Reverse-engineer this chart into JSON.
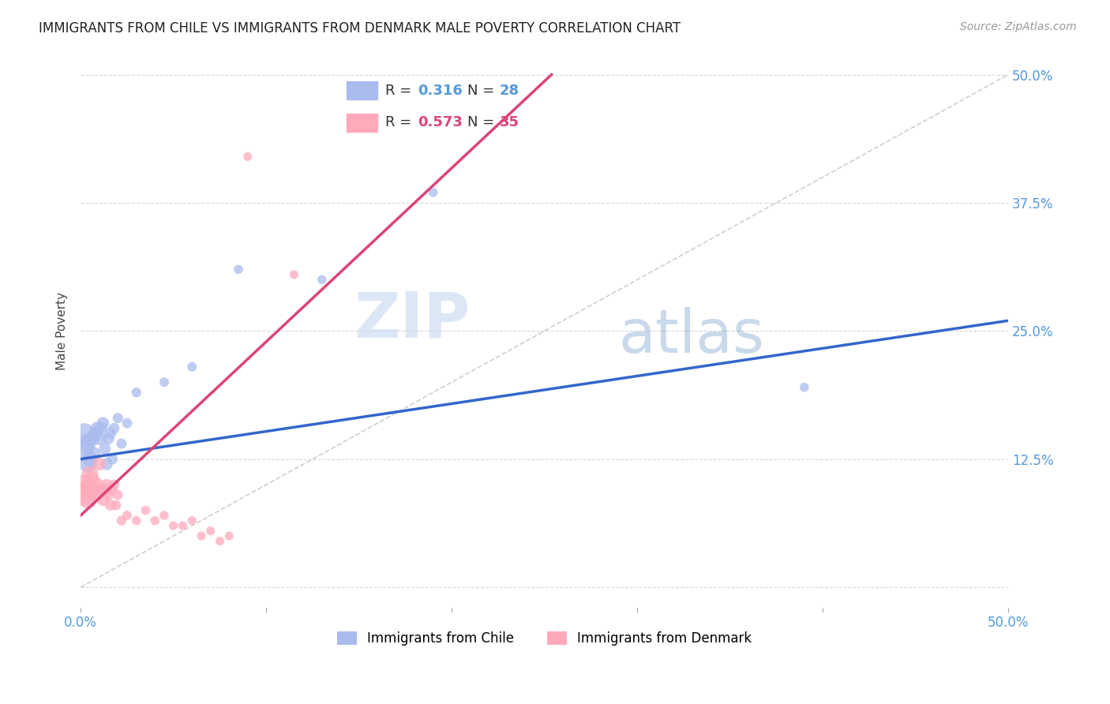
{
  "title": "IMMIGRANTS FROM CHILE VS IMMIGRANTS FROM DENMARK MALE POVERTY CORRELATION CHART",
  "source": "Source: ZipAtlas.com",
  "ylabel": "Male Poverty",
  "xlim": [
    0.0,
    0.5
  ],
  "ylim": [
    -0.02,
    0.52
  ],
  "chile_color": "#aabbee",
  "denmark_color": "#ffaabb",
  "chile_line_color": "#3366cc",
  "denmark_line_color": "#dd4477",
  "R_chile": 0.316,
  "N_chile": 28,
  "R_denmark": 0.573,
  "N_denmark": 35,
  "background_color": "#ffffff",
  "grid_color": "#cccccc",
  "watermark_zip": "ZIP",
  "watermark_atlas": "atlas",
  "chile_line_x0": 0.0,
  "chile_line_y0": 0.125,
  "chile_line_x1": 0.5,
  "chile_line_y1": 0.26,
  "denmark_line_x0": 0.0,
  "denmark_line_y0": 0.07,
  "denmark_line_x1": 0.18,
  "denmark_line_y1": 0.375,
  "chile_points_x": [
    0.001,
    0.002,
    0.003,
    0.004,
    0.005,
    0.006,
    0.007,
    0.008,
    0.009,
    0.01,
    0.011,
    0.012,
    0.013,
    0.014,
    0.015,
    0.016,
    0.017,
    0.018,
    0.02,
    0.022,
    0.025,
    0.03,
    0.045,
    0.06,
    0.085,
    0.13,
    0.19,
    0.39
  ],
  "chile_points_y": [
    0.135,
    0.15,
    0.14,
    0.12,
    0.125,
    0.145,
    0.13,
    0.15,
    0.155,
    0.145,
    0.155,
    0.16,
    0.135,
    0.12,
    0.145,
    0.15,
    0.125,
    0.155,
    0.165,
    0.14,
    0.16,
    0.19,
    0.2,
    0.215,
    0.31,
    0.3,
    0.385,
    0.195
  ],
  "chile_point_sizes": [
    400,
    350,
    300,
    250,
    200,
    180,
    160,
    160,
    150,
    150,
    140,
    130,
    120,
    120,
    110,
    110,
    100,
    100,
    90,
    90,
    85,
    80,
    75,
    75,
    70,
    70,
    70,
    70
  ],
  "denmark_points_x": [
    0.001,
    0.002,
    0.003,
    0.004,
    0.005,
    0.006,
    0.007,
    0.008,
    0.009,
    0.01,
    0.011,
    0.012,
    0.013,
    0.014,
    0.015,
    0.016,
    0.017,
    0.018,
    0.019,
    0.02,
    0.022,
    0.025,
    0.03,
    0.035,
    0.04,
    0.045,
    0.05,
    0.055,
    0.06,
    0.065,
    0.07,
    0.075,
    0.08,
    0.09,
    0.115
  ],
  "denmark_points_y": [
    0.09,
    0.1,
    0.095,
    0.085,
    0.11,
    0.105,
    0.095,
    0.09,
    0.1,
    0.12,
    0.095,
    0.085,
    0.095,
    0.1,
    0.09,
    0.08,
    0.095,
    0.1,
    0.08,
    0.09,
    0.065,
    0.07,
    0.065,
    0.075,
    0.065,
    0.07,
    0.06,
    0.06,
    0.065,
    0.05,
    0.055,
    0.045,
    0.05,
    0.42,
    0.305
  ],
  "denmark_point_sizes": [
    400,
    350,
    300,
    250,
    220,
    200,
    180,
    160,
    150,
    140,
    130,
    120,
    110,
    110,
    100,
    100,
    90,
    90,
    85,
    85,
    80,
    75,
    70,
    70,
    70,
    70,
    65,
    65,
    65,
    65,
    65,
    65,
    65,
    65,
    65
  ]
}
